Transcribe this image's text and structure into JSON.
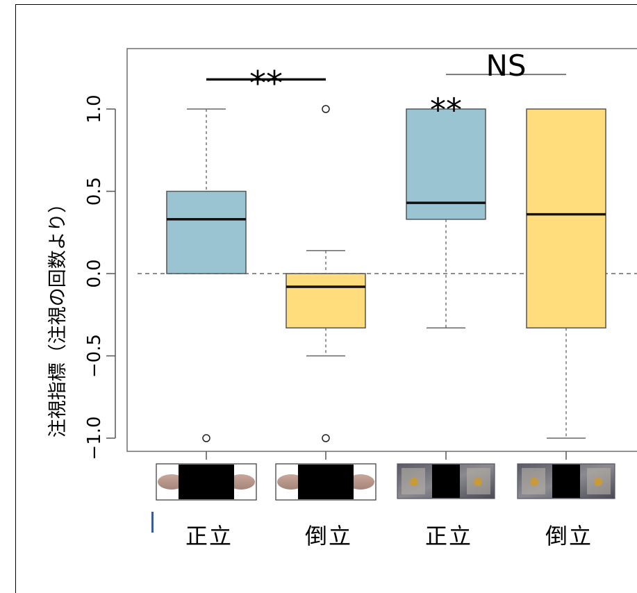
{
  "chart_data": {
    "type": "box",
    "ylabel": "注視指標（注視の回数より）",
    "ylim": [
      -1.1,
      1.3
    ],
    "yticks": [
      -1.0,
      -0.5,
      0.0,
      0.5,
      1.0
    ],
    "ytick_labels": [
      "−1.0",
      "−0.5",
      "0.0",
      "0.5",
      "1.0"
    ],
    "reference_line": 0.0,
    "categories": [
      "正立",
      "倒立",
      "正立",
      "倒立"
    ],
    "boxes": [
      {
        "category": "正立",
        "color": "#9bc4d2",
        "whisker_low": 0.0,
        "q1": 0.0,
        "median": 0.33,
        "q3": 0.5,
        "whisker_high": 1.0,
        "outliers": [
          -1.0
        ]
      },
      {
        "category": "倒立",
        "color": "#ffdc7c",
        "whisker_low": -0.5,
        "q1": -0.33,
        "median": -0.08,
        "q3": 0.0,
        "whisker_high": 0.14,
        "outliers": [
          1.0,
          -1.0
        ]
      },
      {
        "category": "正立",
        "color": "#9bc4d2",
        "whisker_low": -0.33,
        "q1": 0.33,
        "median": 0.43,
        "q3": 1.0,
        "whisker_high": 1.0,
        "outliers": []
      },
      {
        "category": "倒立",
        "color": "#ffdc7c",
        "whisker_low": -1.0,
        "q1": -0.33,
        "median": 0.36,
        "q3": 1.0,
        "whisker_high": 1.0,
        "outliers": []
      }
    ],
    "annotations": [
      {
        "text": "**",
        "between": [
          0,
          1
        ],
        "y": 1.18,
        "kind": "bracket"
      },
      {
        "text": "**",
        "at": 2,
        "y": 1.02,
        "kind": "label"
      },
      {
        "text": "NS",
        "between": [
          2,
          3
        ],
        "y": 1.21,
        "kind": "bracket"
      }
    ],
    "stimulus_images": [
      "lips-pair",
      "lips-pair",
      "bird-pair",
      "bird-pair"
    ]
  }
}
